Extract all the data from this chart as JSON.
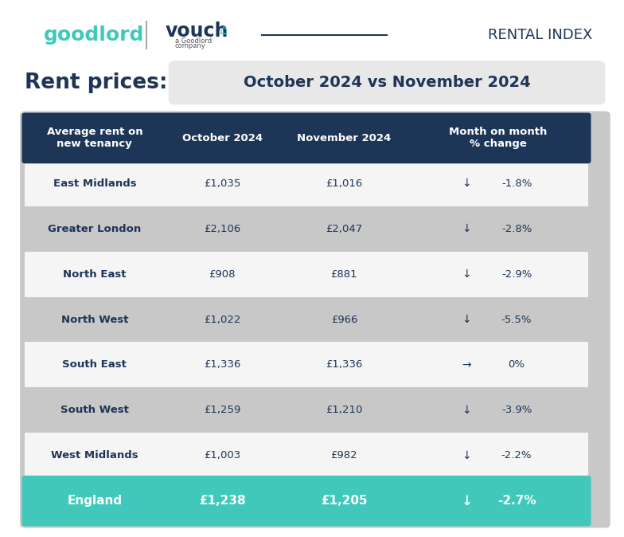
{
  "title_left": "Rent prices:",
  "title_right": "October 2024 vs November 2024",
  "header": [
    "Average rent on\nnew tenancy",
    "October 2024",
    "November 2024",
    "Month on month\n% change"
  ],
  "rows": [
    [
      "East Midlands",
      "£1,035",
      "£1,016",
      "↓",
      "-1.8%"
    ],
    [
      "Greater London",
      "£2,106",
      "£2,047",
      "↓",
      "-2.8%"
    ],
    [
      "North East",
      "£908",
      "£881",
      "↓",
      "-2.9%"
    ],
    [
      "North West",
      "£1,022",
      "£966",
      "↓",
      "-5.5%"
    ],
    [
      "South East",
      "£1,336",
      "£1,336",
      "→",
      "0%"
    ],
    [
      "South West",
      "£1,259",
      "£1,210",
      "↓",
      "-3.9%"
    ],
    [
      "West Midlands",
      "£1,003",
      "£982",
      "↓",
      "-2.2%"
    ]
  ],
  "footer": [
    "England",
    "£1,238",
    "£1,205",
    "↓",
    "-2.7%"
  ],
  "header_bg": "#1d3557",
  "header_text": "#ffffff",
  "row_bg_even": "#f5f5f5",
  "row_bg_odd": "#c8c8c8",
  "footer_bg": "#40c9bb",
  "footer_text": "#ffffff",
  "value_color": "#1d3557",
  "change_arrow_color": "#1d3557",
  "region_text_color": "#1d3557",
  "title_pill_bg": "#e8e8e8",
  "title_left_color": "#1d3557",
  "title_right_color": "#1d3557",
  "goodlord_color": "#40c9bb",
  "rental_index_color": "#1d3557",
  "bg_color": "#ffffff",
  "outer_bg": "#c8c8c8"
}
